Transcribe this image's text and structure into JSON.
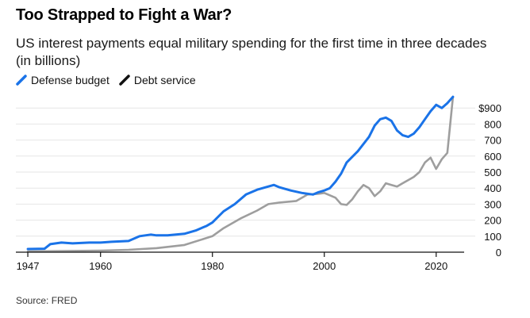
{
  "title": "Too Strapped to Fight a War?",
  "subtitle": "US interest payments equal military spending for the first time in three decades (in billions)",
  "source": "Source: FRED",
  "colors": {
    "defense": "#1a73e8",
    "debt": "#9e9e9e",
    "grid": "#e6e6e6",
    "axis": "#111111"
  },
  "chart_data": {
    "type": "line",
    "xlim": [
      1946,
      2025
    ],
    "ylim": [
      0,
      1000
    ],
    "x_ticks": [
      1947,
      1960,
      1980,
      2000,
      2020
    ],
    "y_ticks": [
      0,
      100,
      200,
      300,
      400,
      500,
      600,
      700,
      800,
      900
    ],
    "y_tick_labels": [
      "0",
      "100",
      "200",
      "300",
      "400",
      "500",
      "600",
      "700",
      "800",
      "$900"
    ],
    "grid": true,
    "legend": "top-left",
    "series": [
      {
        "name": "Defense budget",
        "color": "#1a73e8",
        "x": [
          1947,
          1950,
          1951,
          1953,
          1955,
          1958,
          1960,
          1962,
          1965,
          1967,
          1969,
          1970,
          1972,
          1975,
          1977,
          1979,
          1980,
          1982,
          1984,
          1986,
          1988,
          1990,
          1991,
          1992,
          1994,
          1996,
          1998,
          1999,
          2000,
          2001,
          2002,
          2003,
          2004,
          2006,
          2008,
          2009,
          2010,
          2011,
          2012,
          2013,
          2014,
          2015,
          2016,
          2017,
          2018,
          2019,
          2020,
          2021,
          2022,
          2023
        ],
        "y": [
          20,
          22,
          50,
          60,
          55,
          60,
          60,
          65,
          70,
          100,
          110,
          105,
          105,
          115,
          135,
          165,
          185,
          255,
          300,
          360,
          390,
          410,
          420,
          405,
          385,
          370,
          360,
          375,
          385,
          400,
          440,
          490,
          560,
          630,
          720,
          790,
          830,
          840,
          820,
          760,
          730,
          720,
          740,
          780,
          830,
          880,
          920,
          900,
          930,
          970
        ]
      },
      {
        "name": "Debt service",
        "color": "#9e9e9e",
        "x": [
          1947,
          1960,
          1965,
          1970,
          1975,
          1980,
          1982,
          1985,
          1988,
          1990,
          1992,
          1995,
          1997,
          1999,
          2000,
          2001,
          2002,
          2003,
          2004,
          2005,
          2006,
          2007,
          2008,
          2009,
          2010,
          2011,
          2012,
          2013,
          2014,
          2015,
          2016,
          2017,
          2018,
          2019,
          2020,
          2021,
          2022,
          2023
        ],
        "y": [
          5,
          10,
          15,
          25,
          45,
          100,
          150,
          210,
          260,
          300,
          310,
          320,
          360,
          365,
          370,
          355,
          340,
          300,
          295,
          330,
          380,
          420,
          400,
          350,
          380,
          430,
          420,
          410,
          430,
          450,
          470,
          500,
          560,
          590,
          520,
          580,
          620,
          970
        ]
      }
    ]
  }
}
